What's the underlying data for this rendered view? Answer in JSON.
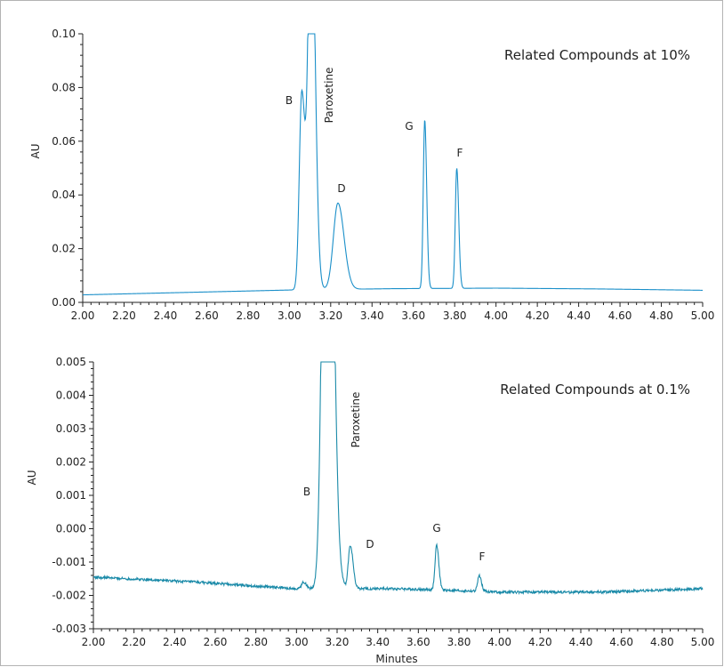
{
  "chart_data": [
    {
      "type": "line",
      "title": "Related Compounds at 10%",
      "xlabel": "",
      "ylabel": "AU",
      "xlim": [
        2.0,
        5.0
      ],
      "ylim": [
        0.0,
        0.1
      ],
      "x_ticks": [
        "2.00",
        "2.20",
        "2.40",
        "2.60",
        "2.80",
        "3.00",
        "3.20",
        "3.40",
        "3.60",
        "3.80",
        "4.00",
        "4.20",
        "4.40",
        "4.60",
        "4.80",
        "5.00"
      ],
      "y_ticks": [
        "0.00",
        "0.02",
        "0.04",
        "0.06",
        "0.08",
        "0.10"
      ],
      "grid": false,
      "line_color": "#1a8fc9",
      "baseline": [
        [
          2.0,
          0.0028
        ],
        [
          2.5,
          0.0037
        ],
        [
          3.0,
          0.0046
        ],
        [
          3.5,
          0.0051
        ],
        [
          4.0,
          0.0053
        ],
        [
          4.5,
          0.005
        ],
        [
          5.0,
          0.0045
        ]
      ],
      "peaks": [
        {
          "label": "B",
          "rt": 3.06,
          "height": 0.078,
          "width": 0.012
        },
        {
          "label": "Paroxetine",
          "rt": 3.105,
          "height": 0.16,
          "width": 0.014
        },
        {
          "label": "D",
          "rt": 3.235,
          "height": 0.037,
          "width": 0.022
        },
        {
          "label": "G",
          "rt": 3.655,
          "height": 0.068,
          "width": 0.007
        },
        {
          "label": "F",
          "rt": 3.81,
          "height": 0.05,
          "width": 0.007
        }
      ]
    },
    {
      "type": "line",
      "title": "Related Compounds at 0.1%",
      "xlabel": "Minutes",
      "ylabel": "AU",
      "xlim": [
        2.0,
        5.0
      ],
      "ylim": [
        -0.003,
        0.005
      ],
      "x_ticks": [
        "2.00",
        "2.20",
        "2.40",
        "2.60",
        "2.80",
        "3.00",
        "3.20",
        "3.40",
        "3.60",
        "3.80",
        "4.00",
        "4.20",
        "4.40",
        "4.60",
        "4.80",
        "5.00"
      ],
      "y_ticks": [
        "-0.003",
        "-0.002",
        "-0.001",
        "0.000",
        "0.001",
        "0.002",
        "0.003",
        "0.004",
        "0.005"
      ],
      "grid": false,
      "line_color": "#1a8aa8",
      "baseline": [
        [
          2.0,
          -0.00145
        ],
        [
          2.5,
          -0.0016
        ],
        [
          3.0,
          -0.0018
        ],
        [
          3.5,
          -0.0018
        ],
        [
          4.0,
          -0.0019
        ],
        [
          4.5,
          -0.0019
        ],
        [
          5.0,
          -0.0018
        ]
      ],
      "peaks": [
        {
          "label": "B",
          "rt": 3.035,
          "height": -0.0016,
          "width": 0.01
        },
        {
          "label": "Paroxetine",
          "rt": 3.15,
          "height": 0.02,
          "width": 0.02
        },
        {
          "label": "D",
          "rt": 3.265,
          "height": -0.0005,
          "width": 0.01
        },
        {
          "label": "G",
          "rt": 3.69,
          "height": -0.0005,
          "width": 0.008
        },
        {
          "label": "F",
          "rt": 3.9,
          "height": -0.0014,
          "width": 0.008
        }
      ]
    }
  ]
}
